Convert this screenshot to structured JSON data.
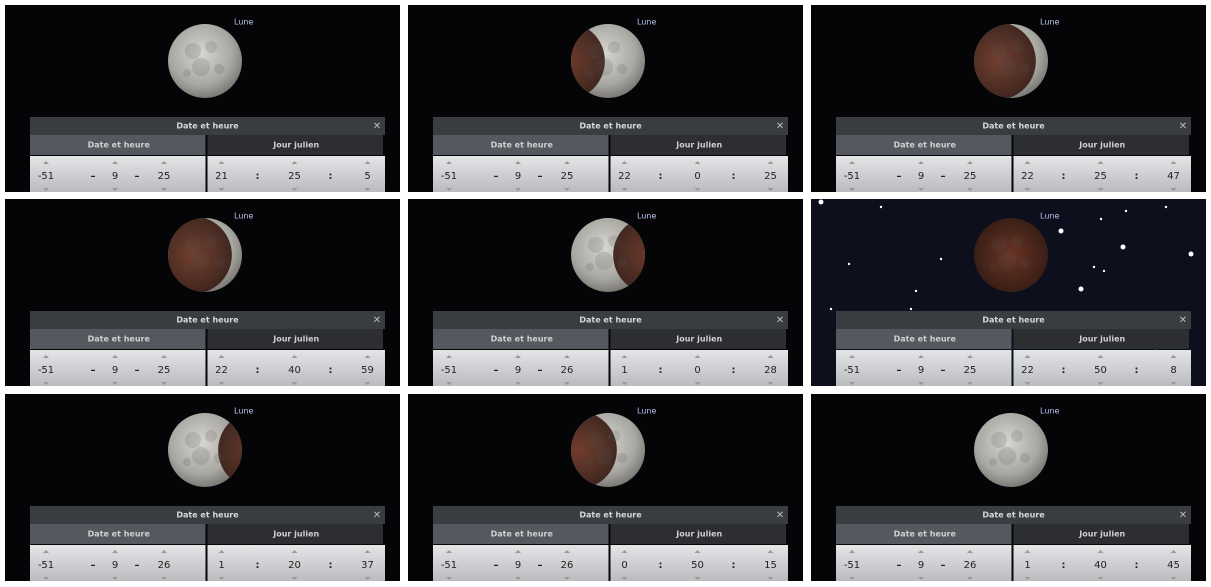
{
  "moon_label": "Lune",
  "dialog_title": "Date et heure",
  "tabs": [
    "Date et heure",
    "Jour julien"
  ],
  "date_separator": "–",
  "time_separator": ":",
  "panels": [
    {
      "date": [
        -51,
        9,
        25
      ],
      "time": [
        21,
        25,
        5
      ]
    },
    {
      "date": [
        -51,
        9,
        25
      ],
      "time": [
        22,
        0,
        25
      ]
    },
    {
      "date": [
        -51,
        9,
        25
      ],
      "time": [
        22,
        25,
        47
      ]
    },
    {
      "date": [
        -51,
        9,
        25
      ],
      "time": [
        22,
        40,
        59
      ]
    },
    {
      "date": [
        -51,
        9,
        26
      ],
      "time": [
        1,
        0,
        28
      ]
    },
    {
      "date": [
        -51,
        9,
        25
      ],
      "time": [
        22,
        50,
        8
      ]
    },
    {
      "date": [
        -51,
        9,
        26
      ],
      "time": [
        1,
        20,
        37
      ]
    },
    {
      "date": [
        -51,
        9,
        26
      ],
      "time": [
        0,
        50,
        15
      ]
    },
    {
      "date": [
        -51,
        9,
        26
      ],
      "time": [
        1,
        40,
        45
      ]
    }
  ]
}
